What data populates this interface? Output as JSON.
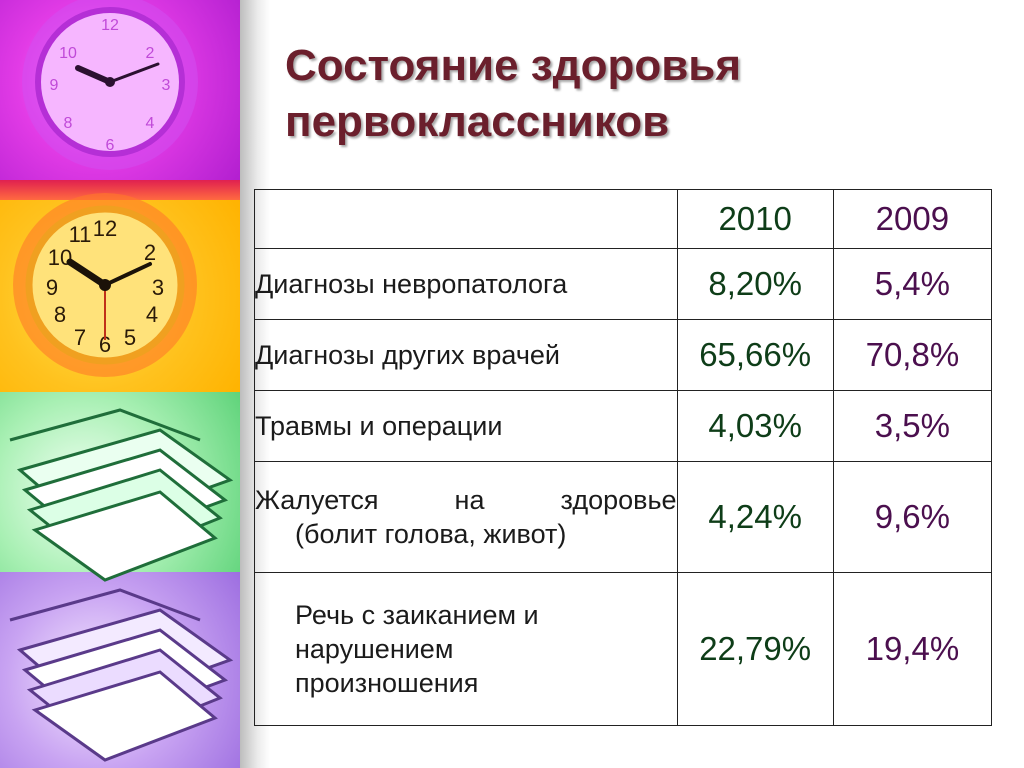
{
  "slide": {
    "title_line1": "Состояние здоровья",
    "title_line2": "первоклассников"
  },
  "table": {
    "headers": [
      "",
      "2010",
      "2009"
    ],
    "rows": [
      {
        "label": "Диагнозы невропатолога",
        "v2010": "8,20%",
        "v2009": "5,4%"
      },
      {
        "label": "Диагнозы других врачей",
        "v2010": "65,66%",
        "v2009": "70,8%"
      },
      {
        "label": "Травмы и операции",
        "v2010": "4,03%",
        "v2009": "3,5%"
      },
      {
        "label_line1": "Жалуется на здоровье",
        "label_line2": "(болит голова, живот)",
        "v2010": "4,24%",
        "v2009": "9,6%"
      },
      {
        "label_line1": "Речь с заиканием и",
        "label_line2": "нарушением",
        "label_line3": "произношения",
        "v2010": "22,79%",
        "v2009": "19,4%"
      }
    ]
  },
  "decor": {
    "clock_purple": "clock-icon",
    "clock_yellow": "clock-icon",
    "papers_green": "paper-stack-icon",
    "papers_violet": "paper-stack-icon",
    "colors": {
      "title": "#6b1f2c",
      "year_2010": "#0e3d18",
      "year_2009": "#4b0f4e"
    }
  }
}
